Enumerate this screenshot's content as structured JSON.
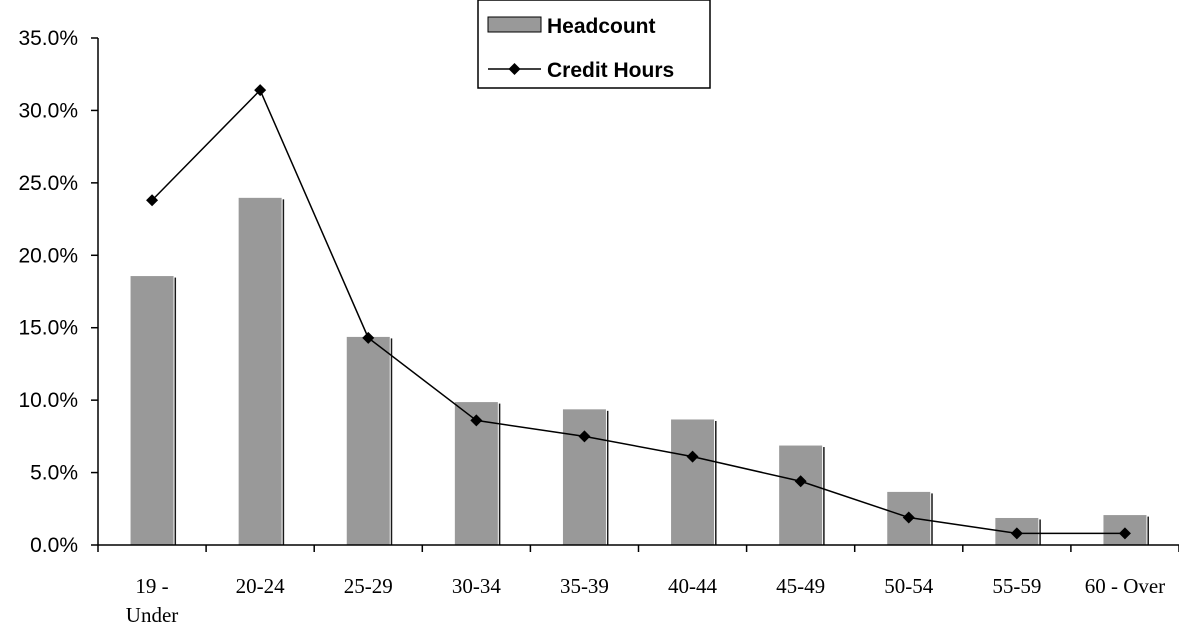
{
  "chart_data": {
    "type": "bar",
    "categories": [
      "19 - Under",
      "20-24",
      "25-29",
      "30-34",
      "35-39",
      "40-44",
      "45-49",
      "50-54",
      "55-59",
      "60 - Over"
    ],
    "category_lines": [
      [
        "19 -",
        "Under"
      ],
      [
        "20-24"
      ],
      [
        "25-29"
      ],
      [
        "30-34"
      ],
      [
        "35-39"
      ],
      [
        "40-44"
      ],
      [
        "45-49"
      ],
      [
        "50-54"
      ],
      [
        "55-59"
      ],
      [
        "60 - Over"
      ]
    ],
    "series": [
      {
        "name": "Headcount",
        "type": "bar",
        "values": [
          18.6,
          24.0,
          14.4,
          9.9,
          9.4,
          8.7,
          6.9,
          3.7,
          1.9,
          2.1
        ],
        "color": "#999999"
      },
      {
        "name": "Credit Hours",
        "type": "line",
        "marker": "diamond",
        "values": [
          23.8,
          31.4,
          14.3,
          8.6,
          7.5,
          6.1,
          4.4,
          1.9,
          0.8,
          0.8
        ],
        "color": "#000000"
      }
    ],
    "yticks": [
      "0.0%",
      "5.0%",
      "10.0%",
      "15.0%",
      "20.0%",
      "25.0%",
      "30.0%",
      "35.0%"
    ],
    "ylim": [
      0,
      35
    ],
    "title": "",
    "xlabel": "",
    "ylabel": "",
    "legend_position": "top-center",
    "grid": false
  }
}
